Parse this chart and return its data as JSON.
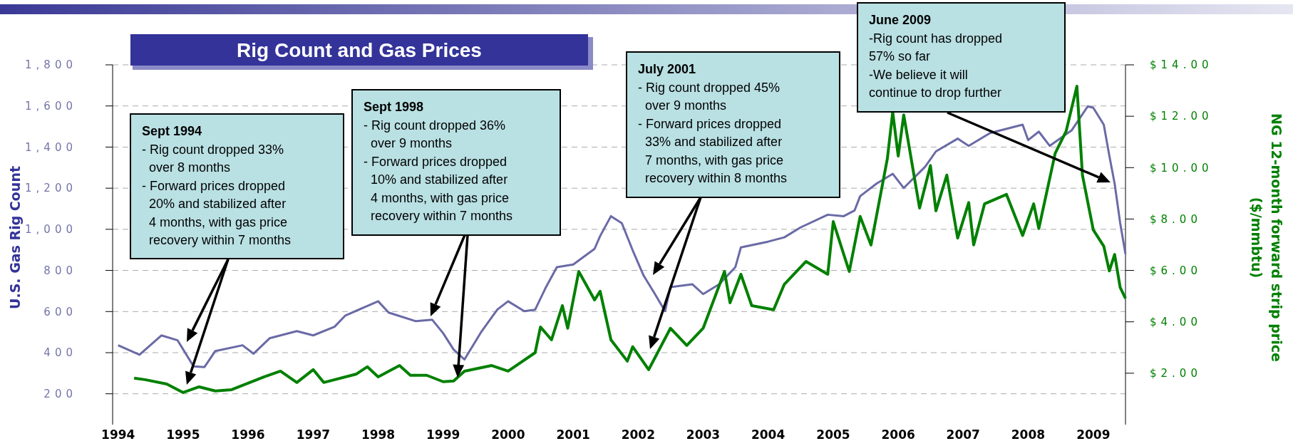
{
  "chart_data": {
    "type": "line",
    "title": "Rig Count and Gas Prices",
    "ylabel": "U.S. Gas Rig Count",
    "y2label": "NG 12-month forward strip price\n($/mmbtu)",
    "annotations": [
      "Sept 1994\n- Rig count dropped 33%\n  over 8 months\n- Forward prices dropped\n  20% and stabilized after\n  4 months, with gas price\n  recovery within 7 months",
      "Sept 1998\n- Rig count dropped 36%\n  over 9 months\n- Forward prices dropped\n  10% and stabilized after\n  4 months, with gas price\n  recovery within 7 months",
      "July 2001\n- Rig count dropped 45%\n  over 9 months\n- Forward prices dropped\n  33% and stabilized after\n  7 months, with gas price\n  recovery within 8 months",
      "June 2009\n-Rig count has dropped\n57% so far\n-We believe it will\ncontinue to drop further"
    ],
    "xlim": [
      "1993-12",
      "2009-07"
    ],
    "xticks": [
      "1994",
      "1995",
      "1996",
      "1997",
      "1998",
      "1999",
      "2000",
      "2001",
      "2002",
      "2003",
      "2004",
      "2005",
      "2006",
      "2007",
      "2008",
      "2009"
    ],
    "ylim": [
      50,
      1800
    ],
    "yticks": [
      {
        "value": 200,
        "label": "200"
      },
      {
        "value": 400,
        "label": "400"
      },
      {
        "value": 600,
        "label": "600"
      },
      {
        "value": 800,
        "label": "800"
      },
      {
        "value": 1000,
        "label": "1,000"
      },
      {
        "value": 1200,
        "label": "1,200"
      },
      {
        "value": 1400,
        "label": "1,400"
      },
      {
        "value": 1600,
        "label": "1,600"
      },
      {
        "value": 1800,
        "label": "1,800"
      }
    ],
    "y2lim": [
      0,
      14
    ],
    "y2ticks": [
      {
        "value": 2,
        "label": "$2.00"
      },
      {
        "value": 4,
        "label": "$4.00"
      },
      {
        "value": 6,
        "label": "$6.00"
      },
      {
        "value": 8,
        "label": "$8.00"
      },
      {
        "value": 10,
        "label": "$10.00"
      },
      {
        "value": 12,
        "label": "$12.00"
      },
      {
        "value": 14,
        "label": "$14.00"
      }
    ],
    "grid": "y",
    "line_style": "solid",
    "marker": "none",
    "series": [
      {
        "color": "#6a6aa6",
        "x": [
          "1994-01",
          "1994-05",
          "1994-09",
          "1994-12",
          "1995-03",
          "1995-05",
          "1995-07",
          "1995-12",
          "1996-02",
          "1996-05",
          "1996-10",
          "1997-01",
          "1997-05",
          "1997-07",
          "1998-01",
          "1998-03",
          "1998-08",
          "1998-11",
          "1999-01",
          "1999-03",
          "1999-05",
          "1999-08",
          "1999-11",
          "2000-01",
          "2000-04",
          "2000-06",
          "2000-08",
          "2000-10",
          "2001-01",
          "2001-05",
          "2001-06",
          "2001-08",
          "2001-10",
          "2001-12",
          "2002-02",
          "2002-04",
          "2002-06",
          "2002-07",
          "2002-11",
          "2003-01",
          "2003-04",
          "2003-07",
          "2003-08",
          "2004-01",
          "2004-04",
          "2004-07",
          "2004-12",
          "2005-03",
          "2005-05",
          "2005-06",
          "2005-09",
          "2005-12",
          "2006-02",
          "2006-06",
          "2006-08",
          "2006-12",
          "2007-02",
          "2007-06",
          "2007-12",
          "2008-01",
          "2008-03",
          "2008-05",
          "2008-09",
          "2008-12",
          "2009-01",
          "2009-03",
          "2009-04",
          "2009-05",
          "2009-06",
          "2009-07"
        ],
        "values": [
          436,
          390,
          484,
          460,
          333,
          330,
          408,
          436,
          395,
          470,
          505,
          484,
          526,
          581,
          650,
          595,
          553,
          560,
          495,
          415,
          367,
          498,
          609,
          650,
          602,
          609,
          719,
          816,
          829,
          905,
          967,
          1064,
          1030,
          898,
          774,
          691,
          602,
          719,
          733,
          685,
          733,
          816,
          912,
          940,
          961,
          1009,
          1071,
          1064,
          1092,
          1161,
          1222,
          1270,
          1201,
          1304,
          1379,
          1441,
          1406,
          1468,
          1509,
          1434,
          1475,
          1406,
          1481,
          1598,
          1591,
          1509,
          1359,
          1222,
          1031,
          880
        ]
      },
      {
        "color": "#008000",
        "axis": "y2",
        "x": [
          "1994-04",
          "1994-06",
          "1994-10",
          "1995-01",
          "1995-04",
          "1995-07",
          "1995-10",
          "1996-04",
          "1996-07",
          "1996-10",
          "1997-01",
          "1997-03",
          "1997-09",
          "1997-11",
          "1998-01",
          "1998-05",
          "1998-07",
          "1998-10",
          "1999-01",
          "1999-03",
          "1999-05",
          "1999-10",
          "2000-01",
          "2000-06",
          "2000-07",
          "2000-09",
          "2000-11",
          "2000-12",
          "2001-02",
          "2001-05",
          "2001-06",
          "2001-08",
          "2001-11",
          "2001-12",
          "2002-03",
          "2002-07",
          "2002-10",
          "2003-01",
          "2003-05",
          "2003-06",
          "2003-08",
          "2003-10",
          "2004-02",
          "2004-04",
          "2004-08",
          "2004-12",
          "2005-01",
          "2005-04",
          "2005-06",
          "2005-08",
          "2005-11",
          "2005-12",
          "2006-01",
          "2006-02",
          "2006-05",
          "2006-07",
          "2006-08",
          "2006-10",
          "2006-12",
          "2007-02",
          "2007-03",
          "2007-05",
          "2007-09",
          "2007-12",
          "2008-02",
          "2008-03",
          "2008-06",
          "2008-08",
          "2008-10",
          "2008-11",
          "2009-01",
          "2009-03",
          "2009-04",
          "2009-05",
          "2009-06",
          "2009-07"
        ],
        "values": [
          1.81,
          1.75,
          1.58,
          1.25,
          1.47,
          1.31,
          1.36,
          1.86,
          2.08,
          1.64,
          2.14,
          1.64,
          1.97,
          2.25,
          1.86,
          2.3,
          1.92,
          1.92,
          1.67,
          1.7,
          2.08,
          2.3,
          2.08,
          2.8,
          3.8,
          3.3,
          4.63,
          3.75,
          5.96,
          4.85,
          5.19,
          3.3,
          2.47,
          3.03,
          2.14,
          3.75,
          3.08,
          3.75,
          5.96,
          4.74,
          5.85,
          4.63,
          4.47,
          5.46,
          6.35,
          5.85,
          7.9,
          5.96,
          8.1,
          6.99,
          10.35,
          12.16,
          10.45,
          12.05,
          8.43,
          10.08,
          8.32,
          9.71,
          7.26,
          8.64,
          6.99,
          8.59,
          8.96,
          7.36,
          8.59,
          7.63,
          10.56,
          11.41,
          13.17,
          9.71,
          7.58,
          6.94,
          5.98,
          6.62,
          5.34,
          4.91
        ]
      }
    ]
  }
}
